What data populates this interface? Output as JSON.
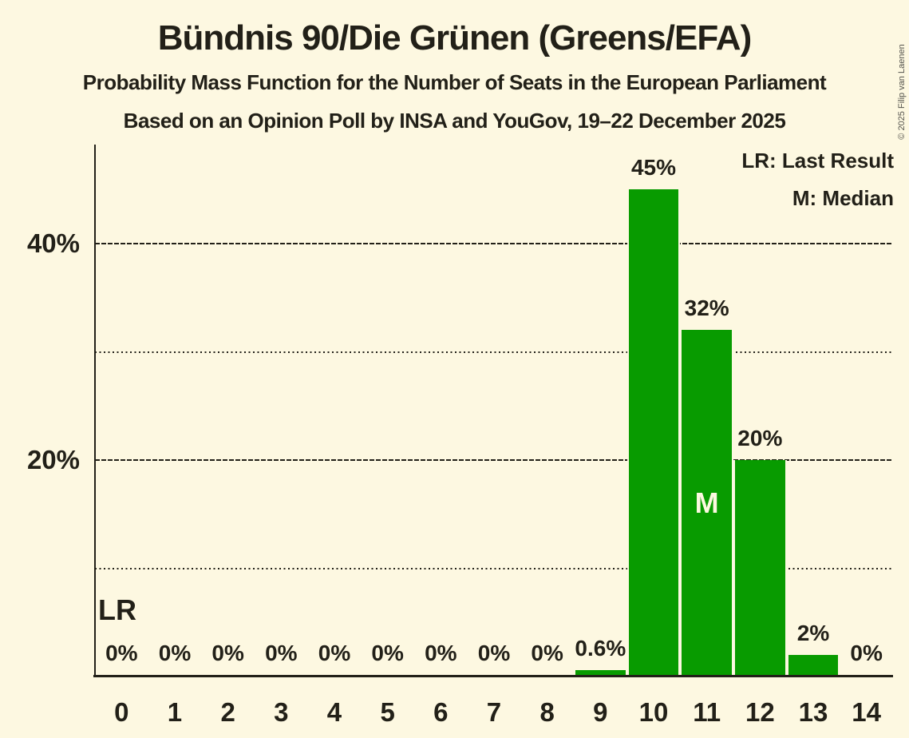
{
  "header": {
    "title": "Bündnis 90/Die Grünen (Greens/EFA)",
    "subtitle1": "Probability Mass Function for the Number of Seats in the European Parliament",
    "subtitle2": "Based on an Opinion Poll by INSA and YouGov, 19–22 December 2025"
  },
  "copyright": "© 2025 Filip van Laenen",
  "legend": {
    "lr": "LR: Last Result",
    "m": "M: Median"
  },
  "annotations": {
    "lr": "LR",
    "m": "M"
  },
  "colors": {
    "background": "#FDF8E1",
    "bar": "#089B00",
    "text": "#222018",
    "copyright": "#55544E"
  },
  "chart_data": {
    "type": "bar",
    "title": "Bündnis 90/Die Grünen (Greens/EFA)",
    "subtitle": "Probability Mass Function for the Number of Seats in the European Parliament",
    "source": "Based on an Opinion Poll by INSA and YouGov, 19–22 December 2025",
    "categories": [
      "0",
      "1",
      "2",
      "3",
      "4",
      "5",
      "6",
      "7",
      "8",
      "9",
      "10",
      "11",
      "12",
      "13",
      "14"
    ],
    "values": [
      0,
      0,
      0,
      0,
      0,
      0,
      0,
      0,
      0,
      0.6,
      45,
      32,
      20,
      2,
      0
    ],
    "value_labels": [
      "0%",
      "0%",
      "0%",
      "0%",
      "0%",
      "0%",
      "0%",
      "0%",
      "0%",
      "0.6%",
      "45%",
      "32%",
      "20%",
      "2%",
      "0%"
    ],
    "xlabel": "",
    "ylabel": "",
    "ylim": [
      0,
      49
    ],
    "y_major_gridlines": [
      {
        "value": 20,
        "label": "20%"
      },
      {
        "value": 40,
        "label": "40%"
      }
    ],
    "y_minor_gridlines": [
      10,
      30
    ],
    "median_category": "11",
    "last_result_category": "0",
    "grid": "horizontal",
    "legend_position": "top-right"
  }
}
